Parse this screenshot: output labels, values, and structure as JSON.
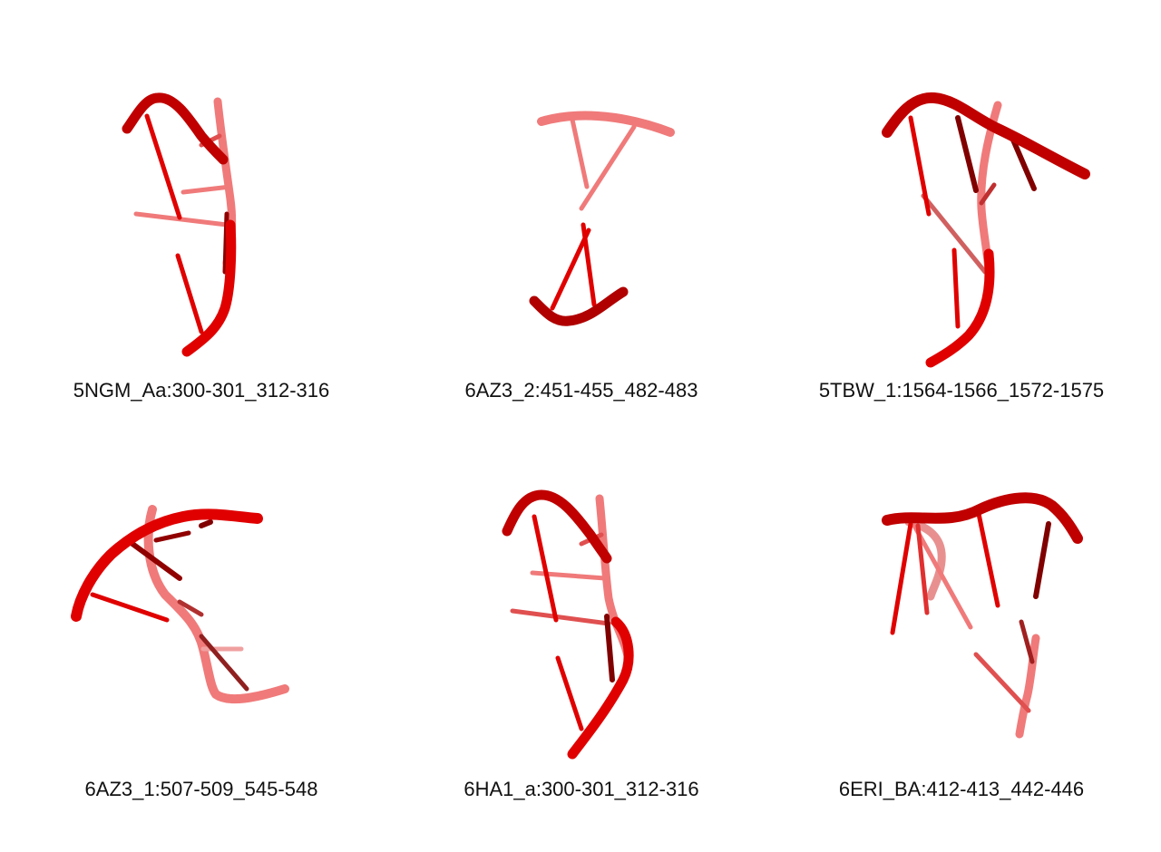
{
  "figure": {
    "colors": {
      "strand_front": "#e00000",
      "strand_dark": "#7a0000",
      "strand_back": "#f07a7a",
      "background": "#ffffff"
    },
    "panels": [
      {
        "label": "5NGM_Aa:300-301_312-316"
      },
      {
        "label": "6AZ3_2:451-455_482-483"
      },
      {
        "label": "5TBW_1:1564-1566_1572-1575"
      },
      {
        "label": "6AZ3_1:507-509_545-548"
      },
      {
        "label": "6HA1_a:300-301_312-316"
      },
      {
        "label": "6ERI_BA:412-413_442-446"
      }
    ]
  }
}
